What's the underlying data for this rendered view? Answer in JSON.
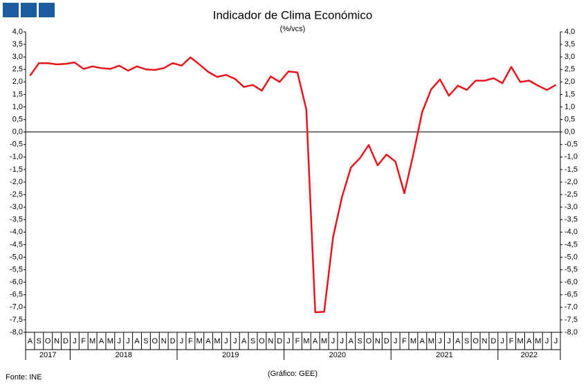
{
  "chart_data": {
    "type": "line",
    "title": "Indicador de Clima Económico",
    "subtitle": "(%/vcs)",
    "source": "Fonte: INE",
    "credit": "(Gráfico: GEE)",
    "categories": [
      "A",
      "S",
      "O",
      "N",
      "D",
      "J",
      "F",
      "M",
      "A",
      "M",
      "J",
      "J",
      "A",
      "S",
      "O",
      "N",
      "D",
      "J",
      "F",
      "M",
      "A",
      "M",
      "J",
      "J",
      "A",
      "S",
      "O",
      "N",
      "D",
      "J",
      "F",
      "M",
      "A",
      "M",
      "J",
      "J",
      "A",
      "S",
      "O",
      "N",
      "D",
      "J",
      "F",
      "M",
      "A",
      "M",
      "J",
      "J",
      "A",
      "S",
      "O",
      "N",
      "D",
      "J",
      "F",
      "M",
      "A",
      "M",
      "J",
      "J"
    ],
    "category_groups": [
      "2017",
      "2018",
      "2019",
      "2020",
      "2021",
      "2022"
    ],
    "series": [
      {
        "name": "Indicador de Clima Económico",
        "color": "#e8141c",
        "values": [
          2.25,
          2.75,
          2.75,
          2.7,
          2.72,
          2.78,
          2.52,
          2.62,
          2.55,
          2.52,
          2.65,
          2.45,
          2.62,
          2.5,
          2.48,
          2.55,
          2.75,
          2.65,
          2.98,
          2.7,
          2.4,
          2.2,
          2.28,
          2.12,
          1.8,
          1.88,
          1.65,
          2.22,
          2.0,
          2.42,
          2.38,
          0.9,
          -7.2,
          -7.18,
          -4.2,
          -2.6,
          -1.42,
          -1.05,
          -0.52,
          -1.33,
          -0.9,
          -1.18,
          -2.45,
          -0.9,
          0.8,
          1.7,
          2.1,
          1.45,
          1.85,
          1.68,
          2.05,
          2.05,
          2.15,
          1.95,
          2.6,
          2.0,
          2.05,
          1.85,
          1.68,
          1.88
        ]
      }
    ],
    "ylim": [
      -8,
      4
    ],
    "yticks": [
      {
        "value": 4,
        "label": "4,0"
      },
      {
        "value": 3.5,
        "label": "3,5"
      },
      {
        "value": 3,
        "label": "3,0"
      },
      {
        "value": 2.5,
        "label": "2,5"
      },
      {
        "value": 2,
        "label": "2,0"
      },
      {
        "value": 1.5,
        "label": "1,5"
      },
      {
        "value": 1,
        "label": "1,0"
      },
      {
        "value": 0.5,
        "label": "0,5"
      },
      {
        "value": 0,
        "label": "0,0"
      },
      {
        "value": -0.5,
        "label": "-0,5"
      },
      {
        "value": -1,
        "label": "-1,0"
      },
      {
        "value": -1.5,
        "label": "-1,5"
      },
      {
        "value": -2,
        "label": "-2,0"
      },
      {
        "value": -2.5,
        "label": "-2,5"
      },
      {
        "value": -3,
        "label": "-3,0"
      },
      {
        "value": -3.5,
        "label": "-3,5"
      },
      {
        "value": -4,
        "label": "-4,0"
      },
      {
        "value": -4.5,
        "label": "-4,5"
      },
      {
        "value": -5,
        "label": "-5,0"
      },
      {
        "value": -5.5,
        "label": "-5,5"
      },
      {
        "value": -6,
        "label": "-6,0"
      },
      {
        "value": -6.5,
        "label": "-6,5"
      },
      {
        "value": -7,
        "label": "-7,0"
      },
      {
        "value": -7.5,
        "label": "-7,5"
      },
      {
        "value": -8,
        "label": "-8,0"
      }
    ],
    "y2lim": [
      -8,
      4
    ],
    "y2ticks": [
      {
        "value": 4,
        "label": "4,0"
      },
      {
        "value": 3.5,
        "label": "3,5"
      },
      {
        "value": 3,
        "label": "3,0"
      },
      {
        "value": 2.5,
        "label": "2,5"
      },
      {
        "value": 2,
        "label": "2,0"
      },
      {
        "value": 1.5,
        "label": "1,5"
      },
      {
        "value": 1,
        "label": "1,0"
      },
      {
        "value": 0.5,
        "label": "0,5"
      },
      {
        "value": 0,
        "label": "0,0"
      },
      {
        "value": -0.5,
        "label": "-0,5"
      },
      {
        "value": -1,
        "label": "-1,0"
      },
      {
        "value": -1.5,
        "label": "-1,5"
      },
      {
        "value": -2,
        "label": "-2,0"
      },
      {
        "value": -2.5,
        "label": "-2,5"
      },
      {
        "value": -3,
        "label": "-3,0"
      },
      {
        "value": -3.5,
        "label": "-3,5"
      },
      {
        "value": -4,
        "label": "-4,0"
      },
      {
        "value": -4.5,
        "label": "-4,5"
      },
      {
        "value": -5,
        "label": "-5,0"
      },
      {
        "value": -5.5,
        "label": "-5,5"
      },
      {
        "value": -6,
        "label": "-6,0"
      },
      {
        "value": -6.5,
        "label": "-6,5"
      },
      {
        "value": -7,
        "label": "-7,0"
      },
      {
        "value": -7.5,
        "label": "-7,5"
      },
      {
        "value": -8,
        "label": "-8,0"
      }
    ],
    "grid": false
  }
}
